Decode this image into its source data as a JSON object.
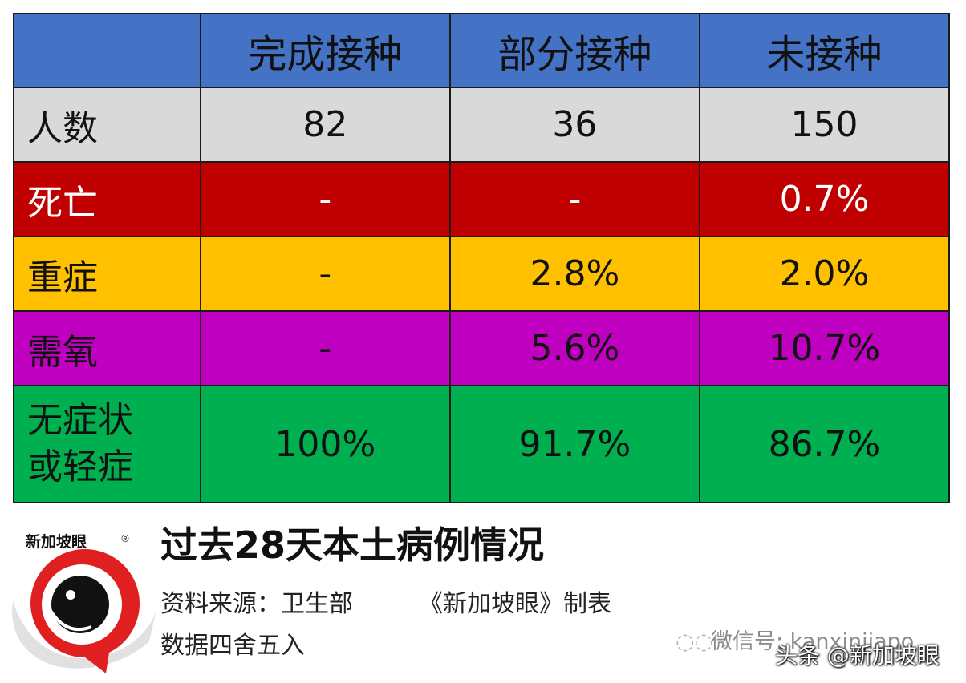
{
  "table": {
    "headers": [
      "",
      "完成接种",
      "部分接种",
      "未接种"
    ],
    "rows": [
      {
        "label": "人数",
        "values": [
          "82",
          "36",
          "150"
        ],
        "color": "#d9d9d9"
      },
      {
        "label": "死亡",
        "values": [
          "-",
          "-",
          "0.7%"
        ],
        "color": "#c00000",
        "text_color": "#ffffff"
      },
      {
        "label": "重症",
        "values": [
          "-",
          "2.8%",
          "2.0%"
        ],
        "color": "#ffc000"
      },
      {
        "label": "需氧",
        "values": [
          "-",
          "5.6%",
          "10.7%"
        ],
        "color": "#c000c0"
      },
      {
        "label_lines": [
          "无症状",
          "或轻症"
        ],
        "values": [
          "100%",
          "91.7%",
          "86.7%"
        ],
        "color": "#00b050"
      }
    ],
    "header_color": "#4472c4"
  },
  "footer": {
    "title": "过去28天本土病例情况",
    "source": "资料来源：卫生部",
    "credit": "《新加坡眼》制表",
    "note": "数据四舍五入"
  },
  "logo": {
    "text": "新加坡眼",
    "mark": "®",
    "icon": "eye-logo-icon"
  },
  "watermarks": {
    "wechat": "微信号: kanxinjiapo",
    "toutiao": "头条 @新加坡眼"
  }
}
